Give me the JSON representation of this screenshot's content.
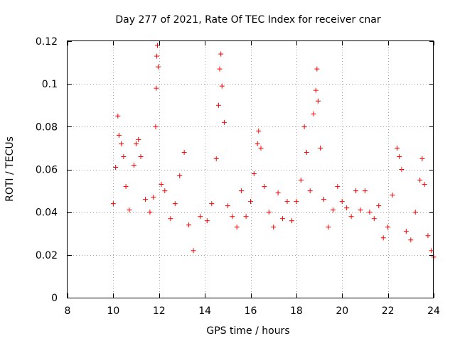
{
  "chart_data": {
    "type": "scatter",
    "title": "Day 277 of 2021, Rate Of TEC Index for receiver cnar",
    "xlabel": "GPS time / hours",
    "ylabel": "ROTI / TECUs",
    "xlim": [
      8,
      24
    ],
    "ylim": [
      0,
      0.12
    ],
    "xticks": [
      "8",
      "10",
      "12",
      "14",
      "16",
      "18",
      "20",
      "22",
      "24"
    ],
    "yticks": [
      "0",
      "0.02",
      "0.04",
      "0.06",
      "0.08",
      "0.1",
      "0.12"
    ],
    "grid": true,
    "marker": "+",
    "color": "#ff0000",
    "series": [
      {
        "points": [
          [
            10.0,
            0.044
          ],
          [
            10.1,
            0.061
          ],
          [
            10.2,
            0.085
          ],
          [
            10.25,
            0.076
          ],
          [
            10.35,
            0.072
          ],
          [
            10.45,
            0.066
          ],
          [
            10.55,
            0.052
          ],
          [
            10.7,
            0.041
          ],
          [
            10.9,
            0.062
          ],
          [
            11.0,
            0.072
          ],
          [
            11.1,
            0.074
          ],
          [
            11.2,
            0.066
          ],
          [
            11.4,
            0.046
          ],
          [
            11.6,
            0.04
          ],
          [
            11.75,
            0.047
          ],
          [
            11.85,
            0.08
          ],
          [
            11.88,
            0.098
          ],
          [
            11.9,
            0.113
          ],
          [
            11.93,
            0.118
          ],
          [
            11.96,
            0.108
          ],
          [
            12.1,
            0.053
          ],
          [
            12.25,
            0.05
          ],
          [
            12.5,
            0.037
          ],
          [
            12.7,
            0.044
          ],
          [
            12.9,
            0.057
          ],
          [
            13.1,
            0.068
          ],
          [
            13.3,
            0.034
          ],
          [
            13.5,
            0.022
          ],
          [
            13.8,
            0.038
          ],
          [
            14.1,
            0.036
          ],
          [
            14.3,
            0.044
          ],
          [
            14.5,
            0.065
          ],
          [
            14.6,
            0.09
          ],
          [
            14.65,
            0.107
          ],
          [
            14.7,
            0.114
          ],
          [
            14.75,
            0.099
          ],
          [
            14.85,
            0.082
          ],
          [
            15.0,
            0.043
          ],
          [
            15.2,
            0.038
          ],
          [
            15.4,
            0.033
          ],
          [
            15.6,
            0.05
          ],
          [
            15.8,
            0.038
          ],
          [
            16.0,
            0.045
          ],
          [
            16.15,
            0.058
          ],
          [
            16.3,
            0.072
          ],
          [
            16.35,
            0.078
          ],
          [
            16.45,
            0.07
          ],
          [
            16.6,
            0.052
          ],
          [
            16.8,
            0.04
          ],
          [
            17.0,
            0.033
          ],
          [
            17.2,
            0.049
          ],
          [
            17.4,
            0.037
          ],
          [
            17.6,
            0.045
          ],
          [
            17.8,
            0.036
          ],
          [
            18.0,
            0.045
          ],
          [
            18.2,
            0.055
          ],
          [
            18.35,
            0.08
          ],
          [
            18.45,
            0.068
          ],
          [
            18.6,
            0.05
          ],
          [
            18.75,
            0.086
          ],
          [
            18.85,
            0.097
          ],
          [
            18.9,
            0.107
          ],
          [
            18.95,
            0.092
          ],
          [
            19.05,
            0.07
          ],
          [
            19.2,
            0.046
          ],
          [
            19.4,
            0.033
          ],
          [
            19.6,
            0.041
          ],
          [
            19.8,
            0.052
          ],
          [
            20.0,
            0.045
          ],
          [
            20.2,
            0.042
          ],
          [
            20.4,
            0.038
          ],
          [
            20.6,
            0.05
          ],
          [
            20.8,
            0.041
          ],
          [
            21.0,
            0.05
          ],
          [
            21.2,
            0.04
          ],
          [
            21.4,
            0.037
          ],
          [
            21.6,
            0.043
          ],
          [
            21.8,
            0.028
          ],
          [
            22.0,
            0.033
          ],
          [
            22.2,
            0.048
          ],
          [
            22.4,
            0.07
          ],
          [
            22.5,
            0.066
          ],
          [
            22.6,
            0.06
          ],
          [
            22.8,
            0.031
          ],
          [
            23.0,
            0.027
          ],
          [
            23.2,
            0.04
          ],
          [
            23.4,
            0.055
          ],
          [
            23.5,
            0.065
          ],
          [
            23.6,
            0.053
          ],
          [
            23.75,
            0.029
          ],
          [
            23.9,
            0.022
          ],
          [
            24.0,
            0.019
          ]
        ]
      }
    ]
  }
}
